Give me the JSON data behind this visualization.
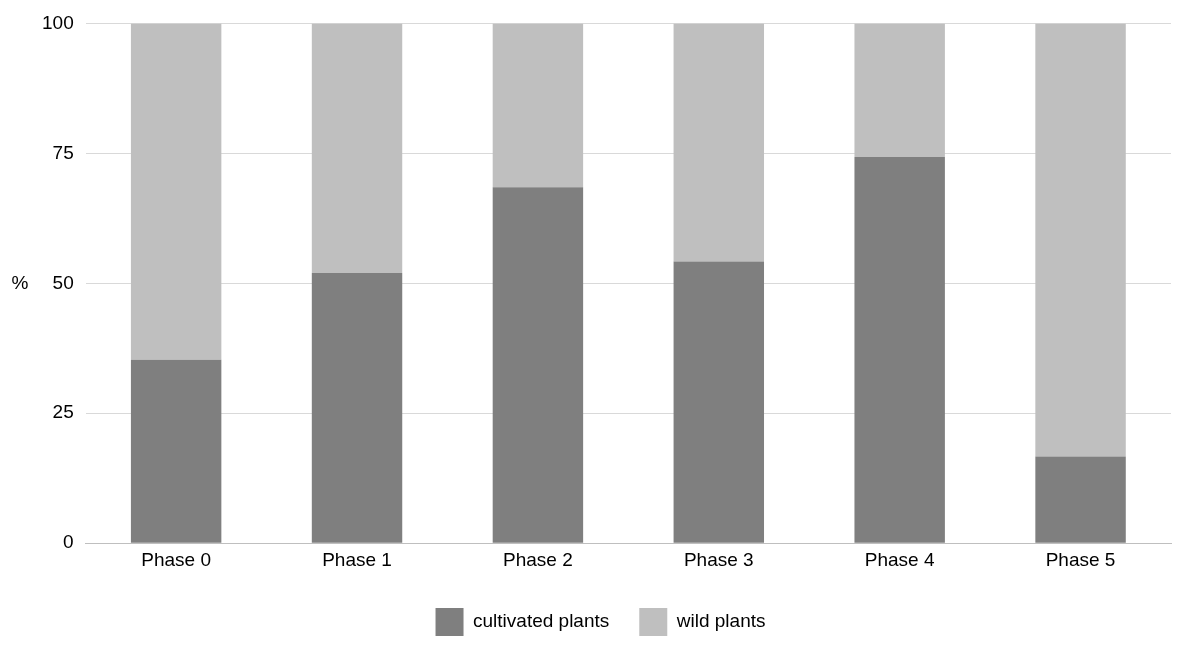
{
  "chart_data": {
    "type": "bar",
    "stacked": true,
    "ylabel": "%",
    "categories": [
      "Phase 0",
      "Phase 1",
      "Phase 2",
      "Phase 3",
      "Phase 4",
      "Phase 5"
    ],
    "series": [
      {
        "name": "cultivated plants",
        "color": "#7f7f7f",
        "values": [
          35.3,
          52,
          68.5,
          54.2,
          74.3,
          16.7
        ]
      },
      {
        "name": "wild plants",
        "color": "#bfbfbf",
        "values": [
          64.7,
          48,
          31.5,
          45.8,
          25.7,
          83.3
        ]
      }
    ],
    "ylim": [
      0,
      100
    ],
    "yticks": [
      0,
      25,
      50,
      75,
      100
    ],
    "grid": "y",
    "legend": "bottom"
  }
}
